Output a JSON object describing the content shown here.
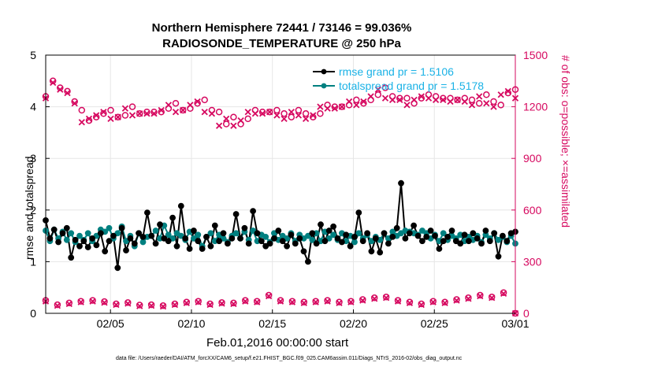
{
  "title_line1": "Northern Hemisphere 72441 / 73146 = 99.036%",
  "title_line2": "RADIOSONDE_TEMPERATURE @ 250 hPa",
  "xlabel": "Feb.01,2016 00:00:00 start",
  "ylabel_left": "rmse and totalspread",
  "ylabel_right": "# of obs: o=possible; ×=assimilated",
  "footer": "data file: /Users/raeder/DAI/ATM_forcXX/CAM6_setup/f.e21.FHIST_BGC.f09_025.CAM6assim.011/Diags_NTrS_2016-02/obs_diag_output.nc",
  "colors": {
    "rmse": "#000000",
    "spread": "#008080",
    "obs": "#d6085f",
    "legend_text": "#1ab2e6"
  },
  "chart_data": {
    "type": "line",
    "x_unit": "days since Feb.01,2016 00:00",
    "xlim": [
      0,
      29
    ],
    "x_ticks": [
      4,
      9,
      14,
      19,
      24,
      29
    ],
    "x_tick_labels": [
      "02/05",
      "02/10",
      "02/15",
      "02/20",
      "02/25",
      "03/01"
    ],
    "ylim_left": [
      0,
      5
    ],
    "y_ticks_left": [
      "0",
      "1",
      "2",
      "3",
      "4",
      "5"
    ],
    "ylim_right": [
      0,
      1500
    ],
    "y_ticks_right": [
      "0",
      "300",
      "600",
      "900",
      "1200",
      "1500"
    ],
    "grid": true,
    "legend_position": "top-right",
    "legend": [
      "rmse grand pr = 1.5106",
      "totalspread grand pr = 1.5178"
    ],
    "series": [
      {
        "name": "rmse grand pr = 1.5106",
        "axis": "left",
        "values": [
          1.8,
          1.45,
          1.62,
          1.38,
          1.55,
          1.65,
          1.08,
          1.42,
          1.3,
          1.4,
          1.28,
          1.45,
          1.32,
          1.55,
          1.2,
          1.4,
          1.5,
          0.88,
          1.65,
          1.22,
          1.45,
          1.35,
          1.55,
          1.48,
          1.95,
          1.5,
          1.35,
          1.72,
          1.45,
          1.4,
          1.85,
          1.3,
          2.08,
          1.45,
          1.25,
          1.6,
          1.4,
          1.25,
          1.48,
          1.3,
          1.7,
          1.4,
          1.55,
          1.35,
          1.45,
          1.92,
          1.45,
          1.65,
          1.35,
          1.98,
          1.55,
          1.4,
          1.3,
          1.35,
          1.45,
          1.6,
          1.4,
          1.3,
          1.52,
          1.35,
          1.45,
          1.2,
          1.0,
          1.55,
          1.35,
          1.72,
          1.4,
          1.6,
          1.68,
          1.45,
          1.38,
          1.52,
          1.3,
          1.48,
          1.95,
          1.4,
          1.55,
          1.2,
          1.45,
          1.18,
          1.55,
          1.35,
          1.48,
          1.65,
          2.52,
          1.45,
          1.55,
          1.7,
          1.5,
          1.4,
          1.48,
          1.6,
          1.5,
          1.25,
          1.4,
          1.48,
          1.6,
          1.4,
          1.35,
          1.52,
          1.4,
          1.55,
          1.45,
          1.35,
          1.6,
          1.4,
          1.55,
          1.1,
          1.5,
          1.4,
          1.55,
          1.58
        ]
      },
      {
        "name": "totalspread grand pr = 1.5178",
        "axis": "left",
        "values": [
          1.6,
          1.4,
          1.62,
          1.45,
          1.58,
          1.42,
          1.55,
          1.38,
          1.5,
          1.42,
          1.55,
          1.4,
          1.5,
          1.62,
          1.58,
          1.65,
          1.45,
          1.55,
          1.68,
          1.4,
          1.5,
          1.3,
          1.55,
          1.38,
          1.48,
          1.5,
          1.6,
          1.45,
          1.7,
          1.52,
          1.45,
          1.55,
          1.5,
          1.42,
          1.58,
          1.45,
          1.52,
          1.3,
          1.48,
          1.55,
          1.4,
          1.52,
          1.45,
          1.38,
          1.5,
          1.55,
          1.45,
          1.58,
          1.42,
          1.6,
          1.4,
          1.52,
          1.48,
          1.38,
          1.55,
          1.42,
          1.5,
          1.45,
          1.55,
          1.4,
          1.52,
          1.45,
          1.5,
          1.42,
          1.55,
          1.4,
          1.58,
          1.45,
          1.52,
          1.42,
          1.55,
          1.4,
          1.5,
          1.38,
          1.55,
          1.45,
          1.52,
          1.4,
          1.48,
          1.42,
          1.55,
          1.45,
          1.58,
          1.5,
          1.55,
          1.6,
          1.58,
          1.55,
          1.52,
          1.6,
          1.55,
          1.45,
          1.52,
          1.4,
          1.55,
          1.42,
          1.5,
          1.45,
          1.52,
          1.4,
          1.48,
          1.42,
          1.5,
          1.38,
          1.52,
          1.45,
          1.55,
          1.42,
          1.48,
          1.38,
          1.5,
          1.35
        ]
      },
      {
        "name": "possible",
        "axis": "right",
        "marker": "o",
        "values": [
          1260,
          1350,
          1310,
          1290,
          1230,
          1180,
          1120,
          1140,
          1160,
          1180,
          1140,
          1150,
          1200,
          1160,
          1170,
          1170,
          1170,
          1190,
          1220,
          1180,
          1190,
          1220,
          1240,
          1180,
          1170,
          1100,
          1140,
          1100,
          1130,
          1180,
          1170,
          1170,
          1180,
          1160,
          1140,
          1180,
          1160,
          1140,
          1160,
          1210,
          1200,
          1200,
          1210,
          1240,
          1220,
          1240,
          1270,
          1310,
          1260,
          1250,
          1250,
          1220,
          1250,
          1270,
          1260,
          1250,
          1250,
          1240,
          1250,
          1240,
          1220,
          1270,
          1230,
          1210,
          1280,
          1300
        ]
      },
      {
        "name": "assimilated",
        "axis": "right",
        "marker": "x",
        "values": [
          1250,
          1340,
          1300,
          1280,
          1220,
          1110,
          1130,
          1150,
          1170,
          1130,
          1140,
          1190,
          1150,
          1160,
          1160,
          1160,
          1180,
          1210,
          1170,
          1180,
          1210,
          1230,
          1170,
          1160,
          1090,
          1130,
          1090,
          1120,
          1170,
          1160,
          1160,
          1170,
          1150,
          1130,
          1170,
          1150,
          1130,
          1150,
          1200,
          1190,
          1190,
          1200,
          1230,
          1210,
          1230,
          1260,
          1300,
          1250,
          1240,
          1240,
          1210,
          1240,
          1260,
          1250,
          1240,
          1240,
          1230,
          1240,
          1230,
          1210,
          1260,
          1220,
          1200,
          1270,
          1290,
          1250
        ]
      },
      {
        "name": "low-count possible",
        "axis": "right",
        "marker": "o",
        "values": [
          75,
          50,
          60,
          70,
          75,
          68,
          55,
          62,
          48,
          50,
          45,
          55,
          65,
          70,
          55,
          62,
          60,
          75,
          70,
          105,
          75,
          70,
          65,
          70,
          75,
          65,
          70,
          80,
          90,
          95,
          75,
          65,
          55,
          70,
          65,
          80,
          90,
          105,
          95,
          120,
          0
        ]
      },
      {
        "name": "low-count assimilated",
        "axis": "right",
        "marker": "x",
        "values": [
          70,
          45,
          55,
          65,
          70,
          62,
          50,
          57,
          42,
          45,
          40,
          50,
          60,
          65,
          50,
          57,
          55,
          70,
          65,
          100,
          70,
          65,
          60,
          65,
          70,
          60,
          65,
          75,
          85,
          90,
          70,
          60,
          50,
          65,
          60,
          75,
          85,
          100,
          90,
          115,
          0
        ]
      }
    ]
  }
}
